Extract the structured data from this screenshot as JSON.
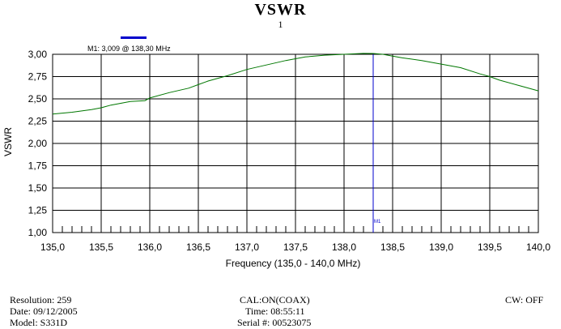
{
  "header": {
    "title": "VSWR",
    "subtitle": "1"
  },
  "marker": {
    "label": "M1: 3,009  @ 138,30 MHz",
    "tag": "M1",
    "frequency": 138.3,
    "value": 3.009,
    "color": "#0000cc"
  },
  "chart_data": {
    "type": "line",
    "title": "VSWR",
    "xlabel": "Frequency (135,0 - 140,0 MHz)",
    "ylabel": "VSWR",
    "xlim": [
      135.0,
      140.0
    ],
    "ylim": [
      1.0,
      3.0
    ],
    "x_ticks": [
      "135,0",
      "135,5",
      "136,0",
      "136,5",
      "137,0",
      "137,5",
      "138,0",
      "138,5",
      "139,0",
      "139,5",
      "140,0"
    ],
    "y_ticks": [
      "1,00",
      "1,25",
      "1,50",
      "1,75",
      "2,00",
      "2,25",
      "2,50",
      "2,75",
      "3,00"
    ],
    "grid": true,
    "series": [
      {
        "color": "#007700",
        "x": [
          135.0,
          135.2,
          135.4,
          135.5,
          135.6,
          135.8,
          135.95,
          136.0,
          136.2,
          136.4,
          136.5,
          136.6,
          136.8,
          137.0,
          137.2,
          137.4,
          137.5,
          137.6,
          137.8,
          138.0,
          138.2,
          138.3,
          138.4,
          138.5,
          138.6,
          138.8,
          139.0,
          139.2,
          139.4,
          139.5,
          139.6,
          139.8,
          140.0
        ],
        "values": [
          2.33,
          2.35,
          2.38,
          2.4,
          2.43,
          2.47,
          2.48,
          2.51,
          2.57,
          2.62,
          2.66,
          2.7,
          2.76,
          2.83,
          2.88,
          2.93,
          2.95,
          2.97,
          2.99,
          3.0,
          3.01,
          3.009,
          3.0,
          2.98,
          2.96,
          2.93,
          2.89,
          2.85,
          2.78,
          2.75,
          2.71,
          2.65,
          2.59
        ]
      }
    ]
  },
  "footer": {
    "resolution": "Resolution:  259",
    "date": "Date:  09/12/2005",
    "model": "Model:  S331D",
    "cal": "CAL:ON(COAX)",
    "time": "Time:  08:55:11",
    "serial": "Serial #:  00523075",
    "cw": "CW:  OFF"
  }
}
